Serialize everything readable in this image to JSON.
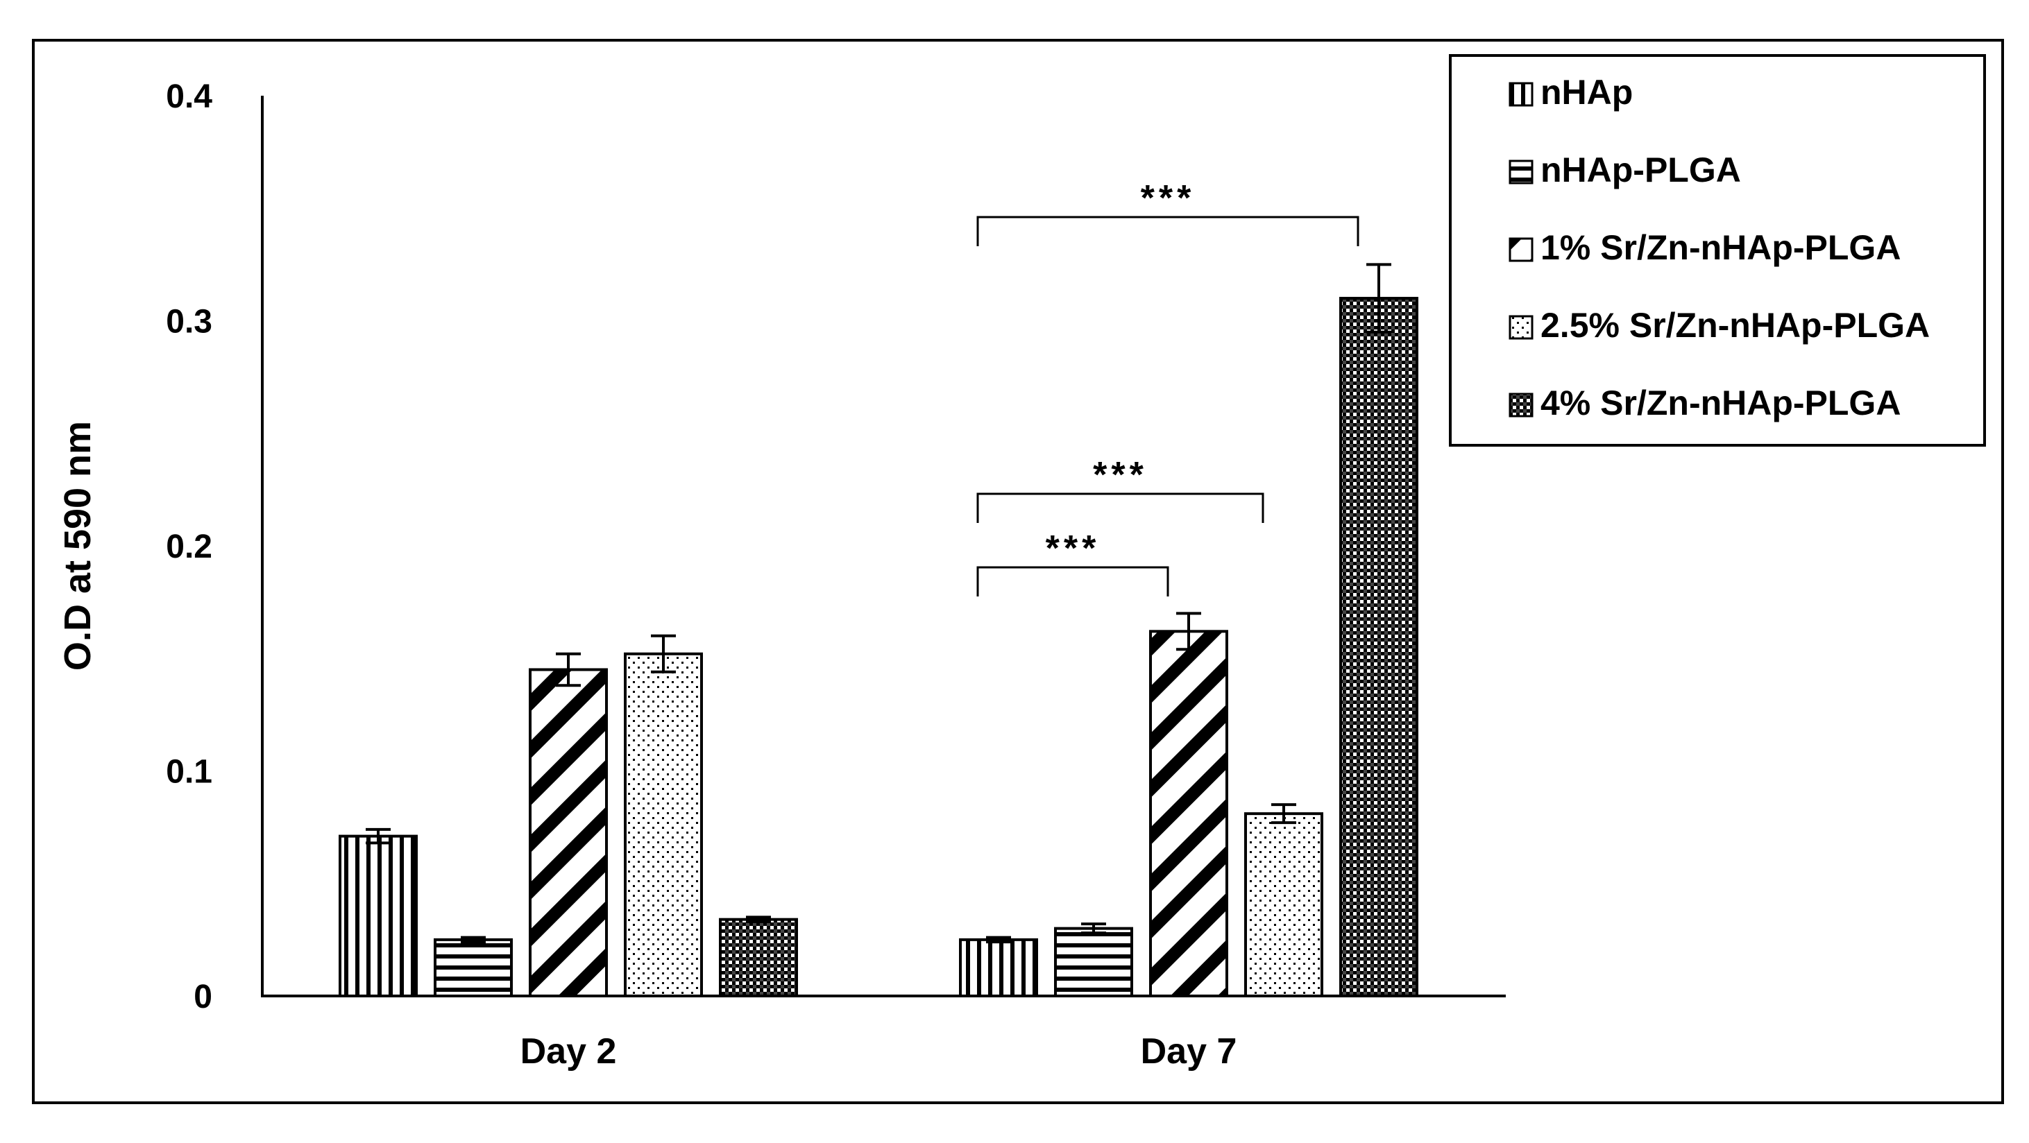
{
  "chart_data": {
    "type": "bar",
    "ylabel": "O.D at 590 nm",
    "xlabel": "",
    "ylim": [
      0,
      0.4
    ],
    "yticks": [
      "0",
      "0.1",
      "0.2",
      "0.3",
      "0.4"
    ],
    "categories": [
      "Day 2",
      "Day 7"
    ],
    "legend_position": "top-right",
    "grid": false,
    "series": [
      {
        "name": "nHAp",
        "pattern": "vertical-lines",
        "values": [
          0.071,
          0.025
        ],
        "errors": [
          0.003,
          0.001
        ]
      },
      {
        "name": "nHAp-PLGA",
        "pattern": "horizontal-lines",
        "values": [
          0.025,
          0.03
        ],
        "errors": [
          0.001,
          0.002
        ]
      },
      {
        "name": "1% Sr/Zn-nHAp-PLGA",
        "pattern": "diagonal-stripes",
        "values": [
          0.145,
          0.162
        ],
        "errors": [
          0.007,
          0.008
        ]
      },
      {
        "name": "2.5% Sr/Zn-nHAp-PLGA",
        "pattern": "dots",
        "values": [
          0.152,
          0.081
        ],
        "errors": [
          0.008,
          0.004
        ]
      },
      {
        "name": "4% Sr/Zn-nHAp-PLGA",
        "pattern": "dense-checker",
        "values": [
          0.034,
          0.31
        ],
        "errors": [
          0.001,
          0.015
        ]
      }
    ],
    "significance": [
      {
        "label": "***",
        "category": "Day 7",
        "from_series": 0,
        "to_series": 4
      },
      {
        "label": "***",
        "category": "Day 7",
        "from_series": 0,
        "to_series": 3
      },
      {
        "label": "***",
        "category": "Day 7",
        "from_series": 0,
        "to_series": 2
      }
    ]
  }
}
